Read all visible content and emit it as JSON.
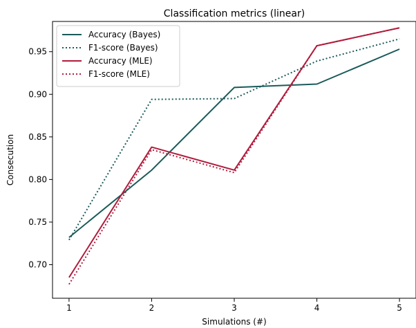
{
  "chart_data": {
    "type": "line",
    "title": "Classification metrics (linear)",
    "xlabel": "Simulations (#)",
    "ylabel": "Consecution",
    "x": [
      1,
      2,
      3,
      4,
      5
    ],
    "xticks": [
      "1",
      "2",
      "3",
      "4",
      "5"
    ],
    "xlim": [
      0.8,
      5.2
    ],
    "yticks": [
      "0.70",
      "0.75",
      "0.80",
      "0.85",
      "0.90",
      "0.95"
    ],
    "ytick_values": [
      0.7,
      0.75,
      0.8,
      0.85,
      0.9,
      0.95
    ],
    "ylim": [
      0.6606,
      0.9855
    ],
    "grid": false,
    "legend_position": "top-left",
    "series": [
      {
        "name": "Accuracy (Bayes)",
        "values": [
          0.732,
          0.811,
          0.908,
          0.912,
          0.953
        ],
        "color": "#1b5a5a",
        "style": "solid"
      },
      {
        "name": "F1-score (Bayes)",
        "values": [
          0.729,
          0.894,
          0.895,
          0.939,
          0.965
        ],
        "color": "#1b5a5a",
        "style": "dotted"
      },
      {
        "name": "Accuracy (MLE)",
        "values": [
          0.685,
          0.838,
          0.811,
          0.957,
          0.978
        ],
        "color": "#b01c3c",
        "style": "solid"
      },
      {
        "name": "F1-score (MLE)",
        "values": [
          0.677,
          0.835,
          0.808,
          0.957,
          0.978
        ],
        "color": "#b01c3c",
        "style": "dotted"
      }
    ]
  }
}
